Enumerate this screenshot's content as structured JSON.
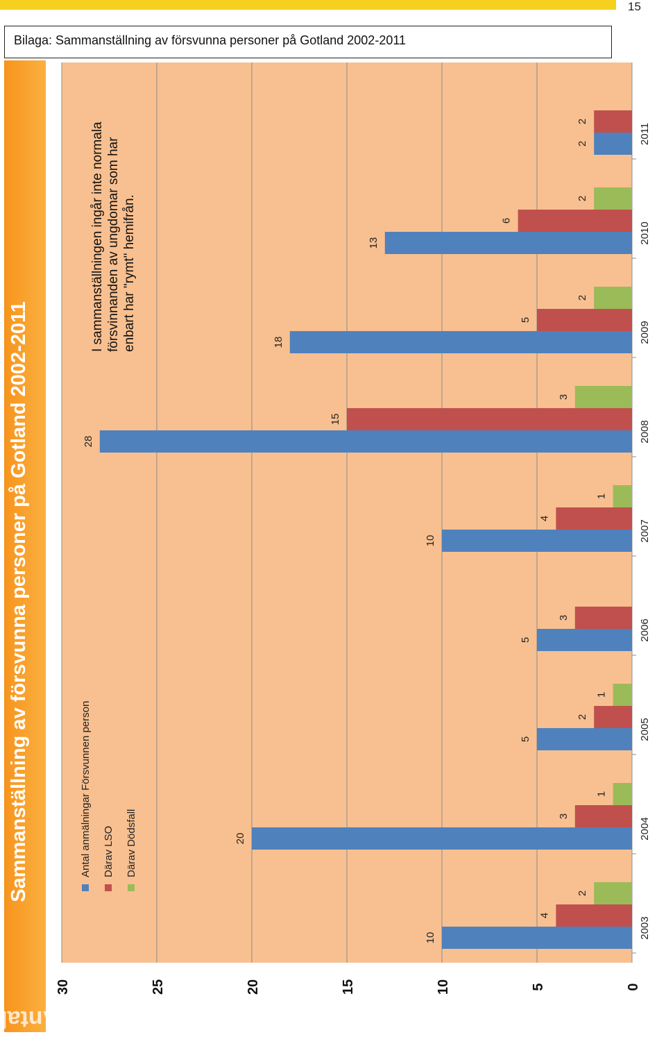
{
  "page": {
    "number": "15"
  },
  "header": {
    "title": "Bilaga: Sammanställning av försvunna personer på Gotland 2002-2011"
  },
  "chart_title": "Sammanställning av försvunna personer på Gotland 2002-2011",
  "axis_title": "Antal:",
  "note": {
    "lines": [
      "I sammanställningen ingår inte normala",
      "försvinnanden av ungdomar som har",
      "enbart har \"rymt\" hemifrån."
    ]
  },
  "colors": {
    "plot_bg": "#f8c090",
    "series": [
      "#4f81bd",
      "#c0504d",
      "#9bbb59"
    ],
    "strip": "#f7941d"
  },
  "chart_data": {
    "type": "bar",
    "orientation": "horizontal-rotated",
    "categories": [
      "2003",
      "2004",
      "2005",
      "2006",
      "2007",
      "2008",
      "2009",
      "2010",
      "2011"
    ],
    "series": [
      {
        "name": "Antal anmälningar Försvunnen person",
        "values": [
          10,
          20,
          5,
          5,
          10,
          28,
          18,
          13,
          2
        ],
        "color": "#4f81bd"
      },
      {
        "name": "Därav LSO",
        "values": [
          4,
          3,
          2,
          3,
          4,
          15,
          5,
          6,
          2
        ],
        "color": "#c0504d"
      },
      {
        "name": "Därav Dödsfall",
        "values": [
          2,
          1,
          1,
          null,
          1,
          3,
          2,
          2,
          null
        ],
        "color": "#9bbb59"
      }
    ],
    "ylim": [
      0,
      30
    ],
    "ticks": [
      "0",
      "5",
      "10",
      "15",
      "20",
      "25",
      "30"
    ],
    "grid": true,
    "legend_position": "top-left"
  }
}
